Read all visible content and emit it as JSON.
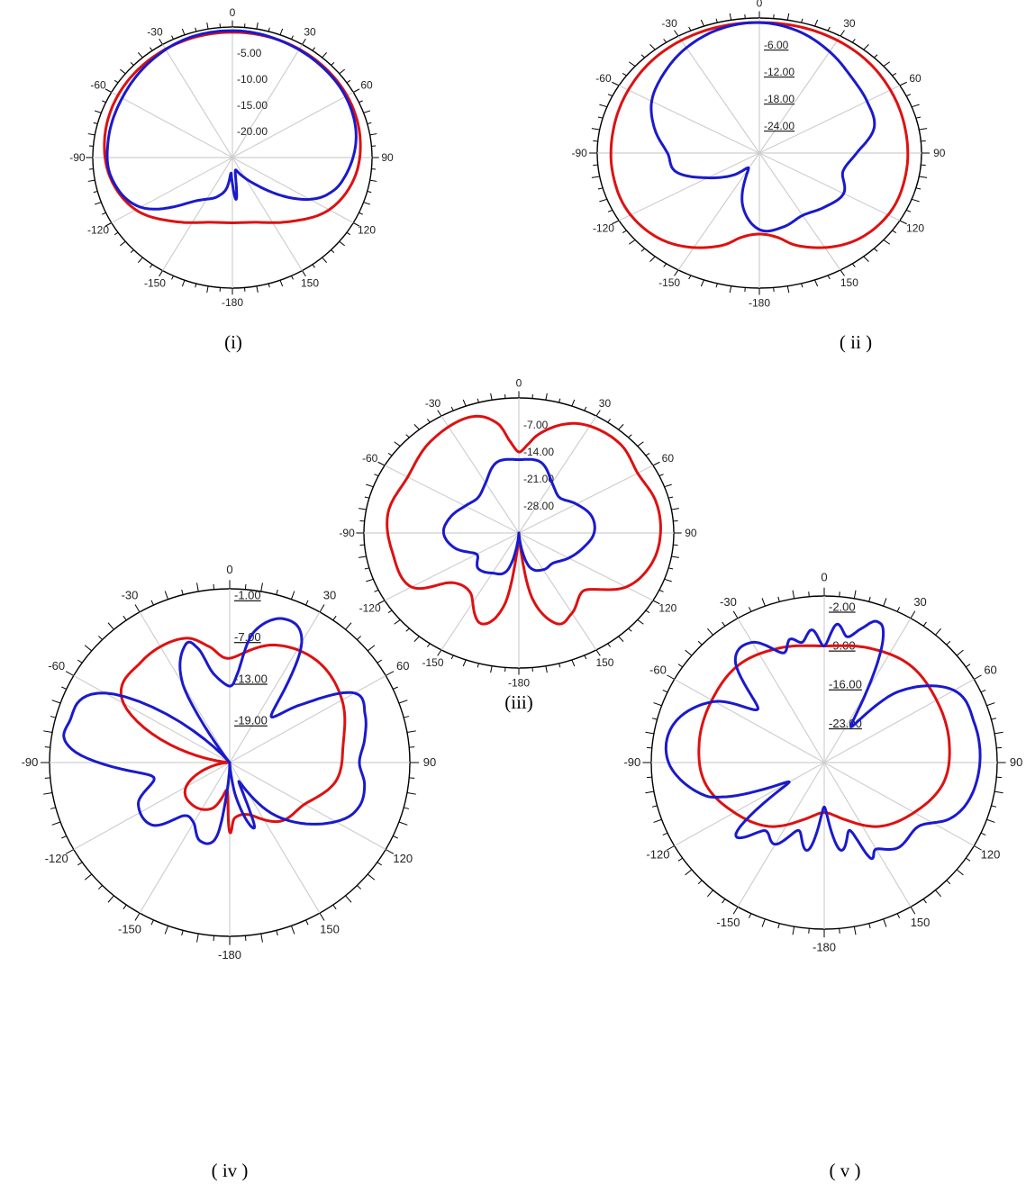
{
  "chart_data": [
    {
      "type": "polar",
      "caption": "(i)",
      "angle_labels": [
        "0",
        "30",
        "60",
        "90",
        "120",
        "150",
        "-180",
        "-150",
        "-120",
        "-90",
        "-60",
        "-30"
      ],
      "radial_labels": [
        "-5.00",
        "-10.00",
        "-15.00",
        "-20.00"
      ],
      "radial_labels_underlined": false,
      "rlim": [
        -25,
        0
      ],
      "series": [
        {
          "color": "#dd1111",
          "theta": [
            0,
            20,
            40,
            60,
            80,
            100,
            120,
            140,
            160,
            180,
            200,
            220,
            240,
            260,
            280,
            300,
            320,
            340
          ],
          "r": [
            -1,
            -1,
            -1.1,
            -1.3,
            -1.8,
            -2.8,
            -5,
            -9,
            -11.8,
            -12.5,
            -11.8,
            -9,
            -5,
            -2.8,
            -1.8,
            -1.3,
            -1.1,
            -1
          ]
        },
        {
          "color": "#1a1acc",
          "theta": [
            0,
            10,
            20,
            40,
            60,
            80,
            100,
            110,
            120,
            140,
            160,
            170,
            175,
            180,
            185,
            190,
            200,
            220,
            240,
            260,
            280,
            300,
            320,
            340
          ],
          "r": [
            -0.7,
            -0.8,
            -1,
            -1.3,
            -1.6,
            -2.5,
            -4.5,
            -6,
            -9,
            -18,
            -22,
            -22,
            -17,
            -20,
            -22,
            -19,
            -17,
            -14,
            -6,
            -3,
            -2.5,
            -2.2,
            -1.5,
            -0.8
          ]
        }
      ]
    },
    {
      "type": "polar",
      "caption": "( ii )",
      "angle_labels": [
        "0",
        "30",
        "60",
        "90",
        "120",
        "150",
        "-180",
        "-150",
        "-120",
        "-90",
        "-60",
        "-30"
      ],
      "radial_labels": [
        "-6.00",
        "-12.00",
        "-18.00",
        "-24.00"
      ],
      "radial_labels_underlined": true,
      "rlim": [
        -30,
        0
      ],
      "series": [
        {
          "color": "#dd1111",
          "theta": [
            0,
            20,
            40,
            60,
            80,
            100,
            120,
            140,
            160,
            170,
            180,
            190,
            200,
            220,
            240,
            260,
            280,
            300,
            320,
            340
          ],
          "r": [
            -1,
            -1,
            -1.3,
            -2,
            -2.5,
            -2.5,
            -2.5,
            -4,
            -8,
            -11,
            -12,
            -11,
            -8,
            -4,
            -2.5,
            -2.5,
            -2.5,
            -2,
            -1.3,
            -1
          ]
        },
        {
          "color": "#1a1acc",
          "theta": [
            0,
            15,
            30,
            45,
            60,
            75,
            90,
            105,
            120,
            135,
            150,
            165,
            180,
            195,
            210,
            225,
            240,
            255,
            270,
            285,
            300,
            315,
            330,
            345
          ],
          "r": [
            -1,
            -2,
            -4,
            -6,
            -7,
            -8,
            -12,
            -14,
            -12,
            -13,
            -14,
            -13,
            -13,
            -18,
            -26,
            -23,
            -19,
            -14,
            -13,
            -10,
            -7,
            -5,
            -3,
            -1.5
          ]
        }
      ]
    },
    {
      "type": "polar",
      "caption": "(iii)",
      "angle_labels": [
        "0",
        "30",
        "60",
        "90",
        "120",
        "150",
        "-180",
        "-150",
        "-120",
        "-90",
        "-60",
        "-30"
      ],
      "radial_labels": [
        "-7.00",
        "-14.00",
        "-21.00",
        "-28.00"
      ],
      "radial_labels_underlined": false,
      "rlim": [
        -35,
        0
      ],
      "series": [
        {
          "color": "#dd1111",
          "theta": [
            0,
            5,
            10,
            20,
            30,
            45,
            60,
            75,
            90,
            105,
            120,
            135,
            150,
            160,
            170,
            175,
            180,
            185,
            190,
            200,
            215,
            230,
            240,
            260,
            280,
            300,
            320,
            340,
            350,
            355
          ],
          "r": [
            -14,
            -12,
            -9,
            -5,
            -3,
            -2.5,
            -4,
            -3,
            -3,
            -4,
            -7,
            -14,
            -11,
            -10,
            -18,
            -32,
            -35,
            -30,
            -16,
            -10,
            -16,
            -15,
            -7,
            -6,
            -5,
            -6,
            -4,
            -3,
            -6,
            -11
          ]
        },
        {
          "color": "#1a1acc",
          "theta": [
            0,
            15,
            30,
            45,
            60,
            75,
            90,
            105,
            120,
            135,
            150,
            165,
            175,
            180,
            185,
            195,
            210,
            225,
            240,
            255,
            270,
            285,
            300,
            315,
            330,
            345
          ],
          "r": [
            -16,
            -16,
            -20,
            -22,
            -20,
            -18,
            -18,
            -20,
            -22,
            -24,
            -24,
            -26,
            -34,
            -35,
            -34,
            -25,
            -23,
            -22,
            -24,
            -20,
            -18,
            -19,
            -21,
            -22,
            -20,
            -16
          ]
        }
      ]
    },
    {
      "type": "polar",
      "caption": "( iv )",
      "angle_labels": [
        "0",
        "30",
        "60",
        "90",
        "120",
        "150",
        "-180",
        "-150",
        "-120",
        "-90",
        "-60",
        "-30"
      ],
      "radial_labels": [
        "-1.00",
        "-7.00",
        "-13.00",
        "-19.00"
      ],
      "radial_labels_underlined": true,
      "rlim": [
        -25,
        0
      ],
      "series": [
        {
          "color": "#dd1111",
          "theta": [
            0,
            20,
            40,
            60,
            80,
            100,
            120,
            140,
            160,
            175,
            180,
            185,
            200,
            220,
            240,
            260,
            270,
            275,
            280,
            300,
            320,
            340,
            350
          ],
          "r": [
            -10,
            -7,
            -6,
            -7,
            -9,
            -10,
            -13,
            -14,
            -17,
            -17,
            -15,
            -21,
            -18,
            -17,
            -18,
            -23,
            -25,
            -25,
            -22,
            -8,
            -6,
            -6,
            -8
          ]
        },
        {
          "color": "#1a1acc",
          "theta": [
            0,
            5,
            10,
            20,
            30,
            40,
            50,
            60,
            70,
            80,
            90,
            100,
            110,
            120,
            140,
            155,
            160,
            170,
            175,
            180,
            185,
            190,
            200,
            210,
            220,
            230,
            245,
            260,
            275,
            285,
            300,
            320,
            330,
            340,
            345,
            350
          ],
          "r": [
            -14,
            -12,
            -6,
            -3,
            -5,
            -16,
            -12,
            -5,
            -5,
            -6,
            -7,
            -6,
            -6,
            -8,
            -15,
            -22,
            -15,
            -20,
            -24,
            -25,
            -21,
            -14,
            -13,
            -15,
            -15,
            -11,
            -11,
            -14,
            -3,
            -2,
            -5,
            -25,
            -12,
            -7,
            -8,
            -12
          ]
        }
      ]
    },
    {
      "type": "polar",
      "caption": "( v )",
      "angle_labels": [
        "0",
        "30",
        "60",
        "90",
        "120",
        "150",
        "-180",
        "-150",
        "-120",
        "-90",
        "-60",
        "-30"
      ],
      "radial_labels": [
        "-2.00",
        "-9.00",
        "-16.00",
        "-23.00"
      ],
      "radial_labels_underlined": true,
      "rlim": [
        -30,
        0
      ],
      "series": [
        {
          "color": "#dd1111",
          "theta": [
            0,
            20,
            40,
            60,
            80,
            100,
            120,
            140,
            160,
            180,
            200,
            220,
            240,
            260,
            280,
            300,
            320,
            340
          ],
          "r": [
            -9,
            -8,
            -7,
            -7.5,
            -8,
            -9,
            -12,
            -15,
            -19,
            -21,
            -19,
            -15,
            -12,
            -9,
            -8,
            -7.5,
            -7,
            -8
          ]
        },
        {
          "color": "#1a1acc",
          "theta": [
            0,
            5,
            10,
            15,
            20,
            25,
            35,
            45,
            60,
            75,
            90,
            105,
            115,
            125,
            140,
            150,
            155,
            160,
            170,
            180,
            190,
            200,
            210,
            220,
            230,
            240,
            250,
            255,
            270,
            285,
            300,
            310,
            320,
            330,
            340,
            345,
            350,
            355
          ],
          "r": [
            -9,
            -5,
            -7,
            -5,
            -3,
            -6,
            -22,
            -12,
            -4,
            -3,
            -3,
            -4,
            -6,
            -10,
            -10,
            -12,
            -11,
            -17,
            -14,
            -22,
            -14,
            -17,
            -13,
            -14,
            -10,
            -23,
            -12,
            -8,
            -3,
            -3,
            -8,
            -15,
            -6,
            -5,
            -9,
            -7,
            -8,
            -6
          ]
        }
      ]
    }
  ]
}
